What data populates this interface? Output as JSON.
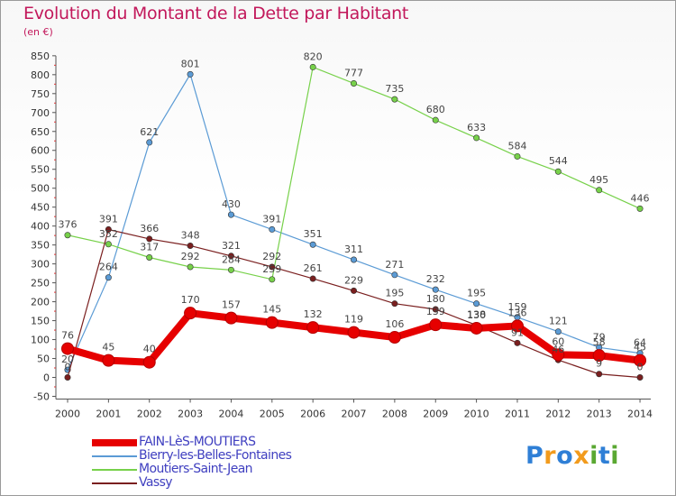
{
  "title": "Evolution du Montant de la Dette par Habitant",
  "unit": "(en €)",
  "logo": {
    "text": "Proxiti",
    "colors": [
      "#2f7fd6",
      "#f29b1d",
      "#2f7fd6",
      "#f29b1d",
      "#5aa832",
      "#2f7fd6",
      "#5aa832"
    ]
  },
  "chart_data": {
    "type": "line",
    "title": "Evolution du Montant de la Dette par Habitant",
    "ylabel": "(en €)",
    "xlabel": "",
    "ylim": [
      -50,
      850
    ],
    "y_ticks": [
      "-50",
      "0",
      "50",
      "100",
      "150",
      "200",
      "250",
      "300",
      "350",
      "400",
      "450",
      "500",
      "550",
      "600",
      "650",
      "700",
      "750",
      "800",
      "850"
    ],
    "x": [
      "2000",
      "2001",
      "2002",
      "2003",
      "2004",
      "2005",
      "2006",
      "2007",
      "2008",
      "2009",
      "2010",
      "2011",
      "2012",
      "2013",
      "2014"
    ],
    "grid": false,
    "legend_position": "bottom-left",
    "series": [
      {
        "name": "FAIN-LèS-MOUTIERS",
        "color": "#e60000",
        "bold": true,
        "values": [
          76,
          45,
          40,
          170,
          157,
          145,
          132,
          119,
          106,
          139,
          130,
          136,
          60,
          58,
          45
        ],
        "labels": [
          "76",
          "45",
          "40",
          "170",
          "157",
          "145",
          "132",
          "119",
          "106",
          "139",
          "130",
          "136",
          "60",
          "58",
          "45"
        ]
      },
      {
        "name": "Bierry-les-Belles-Fontaines",
        "color": "#5b9bd5",
        "values": [
          20,
          264,
          621,
          801,
          430,
          391,
          351,
          311,
          271,
          232,
          195,
          159,
          121,
          79,
          64
        ],
        "labels": [
          "20",
          "264",
          "621",
          "801",
          "430",
          "391",
          "351",
          "311",
          "271",
          "232",
          "195",
          "159",
          "121",
          "79",
          "64"
        ]
      },
      {
        "name": "Moutiers-Saint-Jean",
        "color": "#77d14a",
        "values": [
          376,
          352,
          317,
          292,
          284,
          259,
          820,
          777,
          735,
          680,
          633,
          584,
          544,
          495,
          446
        ],
        "labels": [
          "376",
          "352",
          "317",
          "292",
          "284",
          "259",
          "820",
          "777",
          "735",
          "680",
          "633",
          "584",
          "544",
          "495",
          "446"
        ]
      },
      {
        "name": "Vassy",
        "color": "#7a1f1f",
        "values": [
          0,
          391,
          366,
          348,
          321,
          292,
          261,
          229,
          195,
          180,
          138,
          91,
          46,
          9,
          0
        ],
        "labels": [
          "0",
          "391",
          "366",
          "348",
          "321",
          "292",
          "261",
          "229",
          "195",
          "180",
          "138",
          "91",
          "46",
          "9",
          "0"
        ]
      }
    ]
  }
}
